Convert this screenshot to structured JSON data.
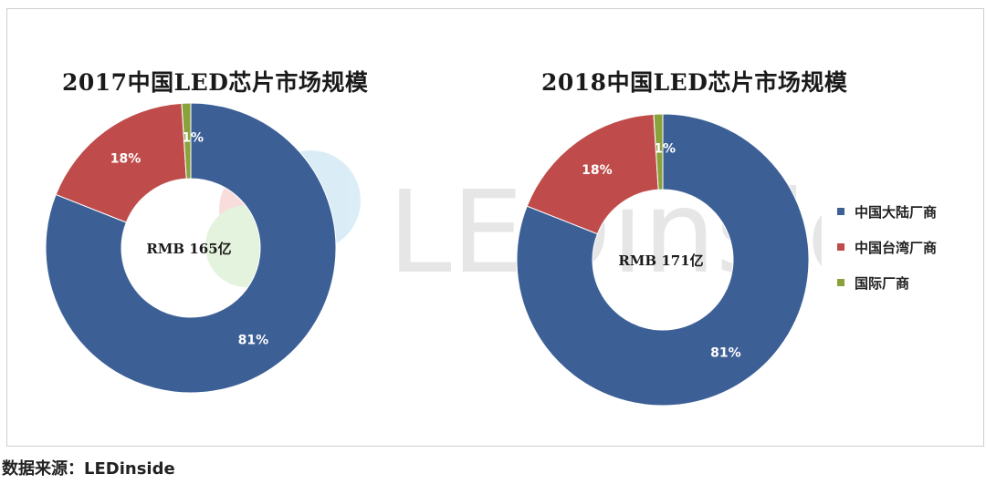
{
  "chart_data": [
    {
      "type": "pie",
      "title": "2017中国LED芯片市场规模",
      "center_label": "RMB 165亿",
      "categories": [
        "中国大陆厂商",
        "中国台湾厂商",
        "国际厂商"
      ],
      "values": [
        81,
        18,
        1
      ],
      "value_labels": [
        "81%",
        "18%",
        "1%"
      ],
      "donut": true
    },
    {
      "type": "pie",
      "title": "2018中国LED芯片市场规模",
      "center_label": "RMB 171亿",
      "categories": [
        "中国大陆厂商",
        "中国台湾厂商",
        "国际厂商"
      ],
      "values": [
        81,
        18,
        1
      ],
      "value_labels": [
        "81%",
        "18%",
        "1%"
      ],
      "donut": true
    }
  ],
  "legend": {
    "position": "right",
    "items": [
      {
        "label": "中国大陆厂商",
        "color": "#3c5f96"
      },
      {
        "label": "中国台湾厂商",
        "color": "#bf4c4b"
      },
      {
        "label": "国际厂商",
        "color": "#8aa23c"
      }
    ]
  },
  "watermark": "LEDinside",
  "source": "数据来源：LEDinside"
}
